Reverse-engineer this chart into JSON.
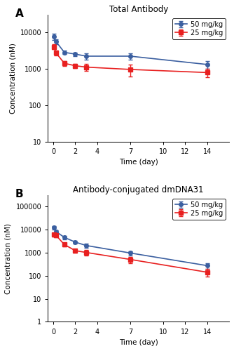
{
  "panel_A": {
    "title": "Total Antibody",
    "label": "A",
    "blue_x": [
      0.05,
      0.25,
      1,
      2,
      3,
      7,
      14
    ],
    "blue_y": [
      7500,
      5500,
      2800,
      2500,
      2200,
      2200,
      1300
    ],
    "blue_yerr_low": [
      1500,
      800,
      300,
      300,
      400,
      400,
      300
    ],
    "blue_yerr_high": [
      1500,
      800,
      300,
      300,
      400,
      400,
      300
    ],
    "red_x": [
      0.05,
      0.25,
      1,
      2,
      3,
      7,
      14
    ],
    "red_y": [
      4000,
      2700,
      1400,
      1200,
      1100,
      950,
      780
    ],
    "red_yerr_low": [
      600,
      400,
      200,
      150,
      250,
      350,
      200
    ],
    "red_yerr_high": [
      600,
      400,
      200,
      150,
      250,
      350,
      200
    ],
    "ylim": [
      10,
      30000
    ],
    "yticks": [
      10,
      100,
      1000,
      10000
    ],
    "ylabel": "Concentration (nM)",
    "xlabel": "Time (day)",
    "xlim": [
      -0.5,
      16
    ],
    "xticks": [
      0,
      2,
      4,
      7,
      10,
      12,
      14
    ]
  },
  "panel_B": {
    "title": "Antibody-conjugated dmDNA31",
    "label": "B",
    "blue_x": [
      0.05,
      0.25,
      1,
      2,
      3,
      7,
      14
    ],
    "blue_y": [
      12000,
      8000,
      4500,
      2800,
      2000,
      950,
      270
    ],
    "blue_yerr_low": [
      2000,
      1200,
      700,
      400,
      400,
      200,
      80
    ],
    "blue_yerr_high": [
      2000,
      1200,
      700,
      400,
      400,
      200,
      80
    ],
    "red_x": [
      0.05,
      0.25,
      1,
      2,
      3,
      7,
      14
    ],
    "red_y": [
      6000,
      5500,
      2200,
      1200,
      1000,
      500,
      140
    ],
    "red_yerr_low": [
      1000,
      800,
      350,
      200,
      250,
      150,
      50
    ],
    "red_yerr_high": [
      1000,
      800,
      350,
      200,
      250,
      150,
      50
    ],
    "ylim": [
      1,
      300000
    ],
    "yticks": [
      1,
      10,
      100,
      1000,
      10000,
      100000
    ],
    "ylabel": "Concentration (nM)",
    "xlabel": "Time (day)",
    "xlim": [
      -0.5,
      16
    ],
    "xticks": [
      0,
      2,
      4,
      7,
      10,
      12,
      14
    ]
  },
  "blue_color": "#3B5FA0",
  "red_color": "#E82020",
  "legend_labels": [
    "50 mg/kg",
    "25 mg/kg"
  ],
  "marker_blue": "o",
  "marker_red": "s",
  "markersize": 4,
  "linewidth": 1.2,
  "capsize": 2.5,
  "elinewidth": 1.0,
  "bg_color": "#FFFFFF"
}
